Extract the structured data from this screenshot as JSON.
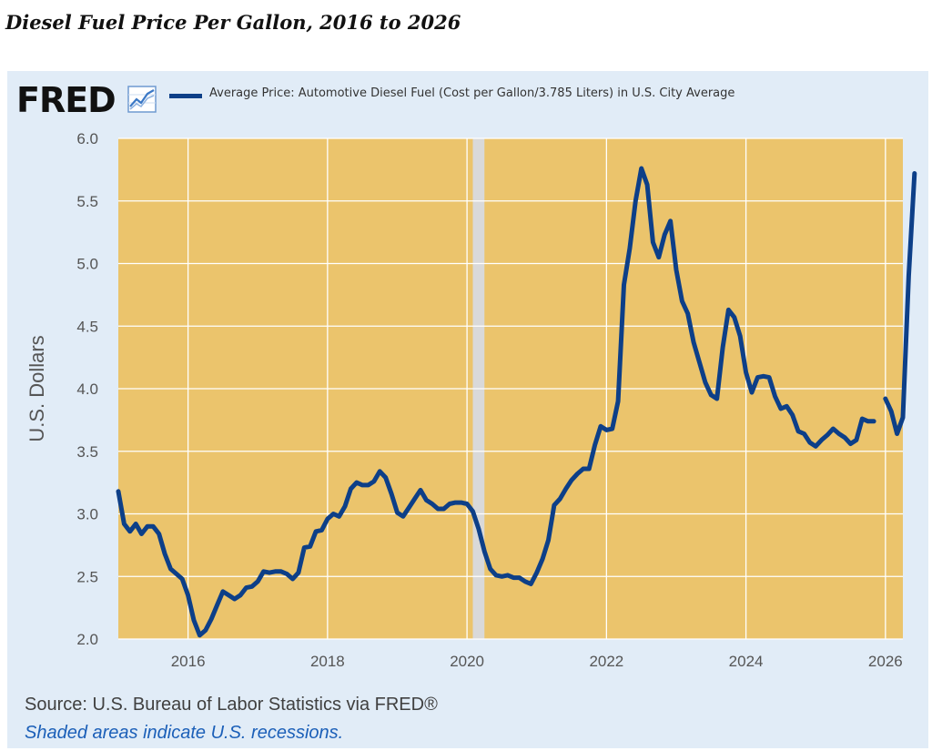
{
  "headline": "Diesel Fuel Price Per Gallon, 2016 to 2026",
  "brand": {
    "logo_text": "FRED",
    "logo_icon": "chart-line-icon"
  },
  "source": "Source: U.S. Bureau of Labor Statistics via FRED®",
  "note": "Shaded areas indicate U.S. recessions.",
  "colors": {
    "plot_background": "#ebc46c",
    "panel_background": "#e1ecf7",
    "series_line": "#0d3f88",
    "recession_band": "#d9d9d9",
    "gridline": "#ffffff"
  },
  "chart_data": {
    "type": "line",
    "title": "",
    "xlabel": "",
    "ylabel": "U.S. Dollars",
    "legend_position": "top-left",
    "grid": true,
    "ylim": [
      2.0,
      6.0
    ],
    "xlim": [
      "2015-01",
      "2026-04"
    ],
    "y_ticks": [
      "2.0",
      "2.5",
      "3.0",
      "3.5",
      "4.0",
      "4.5",
      "5.0",
      "5.5",
      "6.0"
    ],
    "x_ticks": [
      "2016",
      "2018",
      "2020",
      "2022",
      "2024",
      "2026"
    ],
    "recessions": [
      {
        "start": "2020-02",
        "end": "2020-04"
      }
    ],
    "series": [
      {
        "name": "Average Price: Automotive Diesel Fuel (Cost per Gallon/3.785 Liters) in U.S. City Average",
        "points": [
          [
            "2015-01",
            3.18
          ],
          [
            "2015-02",
            2.92
          ],
          [
            "2015-03",
            2.86
          ],
          [
            "2015-04",
            2.92
          ],
          [
            "2015-05",
            2.84
          ],
          [
            "2015-06",
            2.9
          ],
          [
            "2015-07",
            2.9
          ],
          [
            "2015-08",
            2.84
          ],
          [
            "2015-09",
            2.68
          ],
          [
            "2015-10",
            2.56
          ],
          [
            "2015-11",
            2.52
          ],
          [
            "2015-12",
            2.48
          ],
          [
            "2016-01",
            2.35
          ],
          [
            "2016-02",
            2.15
          ],
          [
            "2016-03",
            2.03
          ],
          [
            "2016-04",
            2.07
          ],
          [
            "2016-05",
            2.16
          ],
          [
            "2016-06",
            2.27
          ],
          [
            "2016-07",
            2.38
          ],
          [
            "2016-08",
            2.35
          ],
          [
            "2016-09",
            2.32
          ],
          [
            "2016-10",
            2.35
          ],
          [
            "2016-11",
            2.41
          ],
          [
            "2016-12",
            2.42
          ],
          [
            "2017-01",
            2.46
          ],
          [
            "2017-02",
            2.54
          ],
          [
            "2017-03",
            2.53
          ],
          [
            "2017-04",
            2.54
          ],
          [
            "2017-05",
            2.54
          ],
          [
            "2017-06",
            2.52
          ],
          [
            "2017-07",
            2.48
          ],
          [
            "2017-08",
            2.53
          ],
          [
            "2017-09",
            2.73
          ],
          [
            "2017-10",
            2.74
          ],
          [
            "2017-11",
            2.86
          ],
          [
            "2017-12",
            2.87
          ],
          [
            "2018-01",
            2.96
          ],
          [
            "2018-02",
            3.0
          ],
          [
            "2018-03",
            2.98
          ],
          [
            "2018-04",
            3.06
          ],
          [
            "2018-05",
            3.2
          ],
          [
            "2018-06",
            3.25
          ],
          [
            "2018-07",
            3.23
          ],
          [
            "2018-08",
            3.23
          ],
          [
            "2018-09",
            3.26
          ],
          [
            "2018-10",
            3.34
          ],
          [
            "2018-11",
            3.29
          ],
          [
            "2018-12",
            3.16
          ],
          [
            "2019-01",
            3.01
          ],
          [
            "2019-02",
            2.98
          ],
          [
            "2019-03",
            3.05
          ],
          [
            "2019-04",
            3.12
          ],
          [
            "2019-05",
            3.19
          ],
          [
            "2019-06",
            3.11
          ],
          [
            "2019-07",
            3.08
          ],
          [
            "2019-08",
            3.04
          ],
          [
            "2019-09",
            3.04
          ],
          [
            "2019-10",
            3.08
          ],
          [
            "2019-11",
            3.09
          ],
          [
            "2019-12",
            3.09
          ],
          [
            "2020-01",
            3.08
          ],
          [
            "2020-02",
            3.02
          ],
          [
            "2020-03",
            2.88
          ],
          [
            "2020-04",
            2.7
          ],
          [
            "2020-05",
            2.56
          ],
          [
            "2020-06",
            2.51
          ],
          [
            "2020-07",
            2.5
          ],
          [
            "2020-08",
            2.51
          ],
          [
            "2020-09",
            2.49
          ],
          [
            "2020-10",
            2.49
          ],
          [
            "2020-11",
            2.46
          ],
          [
            "2020-12",
            2.44
          ],
          [
            "2021-01",
            2.53
          ],
          [
            "2021-02",
            2.64
          ],
          [
            "2021-03",
            2.79
          ],
          [
            "2021-04",
            3.07
          ],
          [
            "2021-05",
            3.12
          ],
          [
            "2021-06",
            3.2
          ],
          [
            "2021-07",
            3.27
          ],
          [
            "2021-08",
            3.32
          ],
          [
            "2021-09",
            3.36
          ],
          [
            "2021-10",
            3.36
          ],
          [
            "2021-11",
            3.55
          ],
          [
            "2021-12",
            3.7
          ],
          [
            "2022-01",
            3.67
          ],
          [
            "2022-02",
            3.68
          ],
          [
            "2022-03",
            3.9
          ],
          [
            "2022-04",
            4.83
          ],
          [
            "2022-05",
            5.12
          ],
          [
            "2022-06",
            5.5
          ],
          [
            "2022-07",
            5.76
          ],
          [
            "2022-08",
            5.63
          ],
          [
            "2022-09",
            5.17
          ],
          [
            "2022-10",
            5.05
          ],
          [
            "2022-11",
            5.23
          ],
          [
            "2022-12",
            5.34
          ],
          [
            "2023-01",
            4.95
          ],
          [
            "2023-02",
            4.7
          ],
          [
            "2023-03",
            4.6
          ],
          [
            "2023-04",
            4.37
          ],
          [
            "2023-05",
            4.21
          ],
          [
            "2023-06",
            4.05
          ],
          [
            "2023-07",
            3.95
          ],
          [
            "2023-08",
            3.92
          ],
          [
            "2023-09",
            4.33
          ],
          [
            "2023-10",
            4.63
          ],
          [
            "2023-11",
            4.57
          ],
          [
            "2023-12",
            4.42
          ],
          [
            "2024-01",
            4.13
          ],
          [
            "2024-02",
            3.97
          ],
          [
            "2024-03",
            4.09
          ],
          [
            "2024-04",
            4.1
          ],
          [
            "2024-05",
            4.09
          ],
          [
            "2024-06",
            3.94
          ],
          [
            "2024-07",
            3.84
          ],
          [
            "2024-08",
            3.86
          ],
          [
            "2024-09",
            3.79
          ],
          [
            "2024-10",
            3.66
          ],
          [
            "2024-11",
            3.64
          ],
          [
            "2024-12",
            3.57
          ],
          [
            "2025-01",
            3.54
          ],
          [
            "2025-02",
            3.59
          ],
          [
            "2025-03",
            3.63
          ],
          [
            "2025-04",
            3.68
          ],
          [
            "2025-05",
            3.64
          ],
          [
            "2025-06",
            3.61
          ],
          [
            "2025-07",
            3.56
          ],
          [
            "2025-08",
            3.59
          ],
          [
            "2025-09",
            3.76
          ],
          [
            "2025-10",
            3.74
          ],
          [
            "2025-11",
            3.74
          ],
          [
            "2025-12",
            null
          ],
          [
            "2026-01",
            3.92
          ],
          [
            "2026-02",
            3.82
          ],
          [
            "2026-03",
            3.64
          ],
          [
            "2026-04",
            3.77
          ],
          [
            "2026-05",
            4.9
          ],
          [
            "2026-06",
            5.72
          ]
        ]
      }
    ]
  }
}
